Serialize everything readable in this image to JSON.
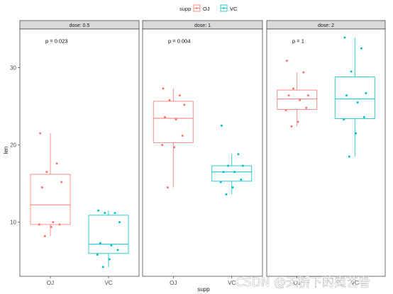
{
  "chart_data": {
    "type": "boxplot",
    "legend": {
      "title": "supp",
      "position": "top",
      "entries": [
        {
          "label": "OJ",
          "color": "#F8766D"
        },
        {
          "label": "VC",
          "color": "#00BFC4"
        }
      ]
    },
    "x_categories": [
      "OJ",
      "VC"
    ],
    "xlabel": "supp",
    "ylabel": "len",
    "ylim": [
      3,
      35
    ],
    "yticks": [
      10,
      20,
      30
    ],
    "grid": false,
    "panels": [
      {
        "strip": "dose: 0.5",
        "p_label": "p = 0.023",
        "groups": [
          {
            "supp": "OJ",
            "min": 8.2,
            "q1": 9.7,
            "median": 12.25,
            "q3": 16.2,
            "max": 21.5,
            "points": [
              21.5,
              17.6,
              16.5,
              15.2,
              14.5,
              10.0,
              9.7,
              9.7,
              9.4,
              8.2
            ]
          },
          {
            "supp": "VC",
            "min": 4.2,
            "q1": 5.95,
            "median": 7.15,
            "q3": 10.9,
            "max": 11.5,
            "points": [
              11.5,
              11.2,
              11.2,
              10.0,
              7.3,
              7.0,
              6.4,
              5.8,
              5.2,
              4.2
            ]
          }
        ]
      },
      {
        "strip": "dose: 1",
        "p_label": "p = 0.004",
        "groups": [
          {
            "supp": "OJ",
            "min": 14.5,
            "q1": 20.3,
            "median": 23.45,
            "q3": 25.65,
            "max": 27.3,
            "points": [
              27.3,
              26.4,
              25.8,
              25.2,
              23.6,
              23.3,
              21.2,
              20.0,
              19.7,
              14.5
            ]
          },
          {
            "supp": "VC",
            "min": 13.6,
            "q1": 15.3,
            "median": 16.5,
            "q3": 17.3,
            "max": 18.8,
            "points": [
              22.5,
              18.8,
              17.3,
              17.3,
              16.5,
              16.5,
              15.5,
              15.2,
              14.5,
              13.6
            ]
          }
        ]
      },
      {
        "strip": "dose: 2",
        "p_label": "p = 1",
        "groups": [
          {
            "supp": "OJ",
            "min": 22.4,
            "q1": 24.6,
            "median": 25.95,
            "q3": 27.1,
            "max": 29.4,
            "points": [
              30.9,
              29.4,
              27.3,
              26.4,
              26.4,
              25.8,
              24.8,
              24.5,
              23.0,
              22.4
            ]
          },
          {
            "supp": "VC",
            "min": 18.5,
            "q1": 23.4,
            "median": 25.95,
            "q3": 28.8,
            "max": 33.9,
            "points": [
              33.9,
              32.5,
              29.5,
              26.7,
              26.4,
              25.5,
              23.6,
              23.3,
              21.5,
              18.5
            ]
          }
        ]
      }
    ]
  },
  "watermark": "CSDN @天桥下的卖艺者"
}
